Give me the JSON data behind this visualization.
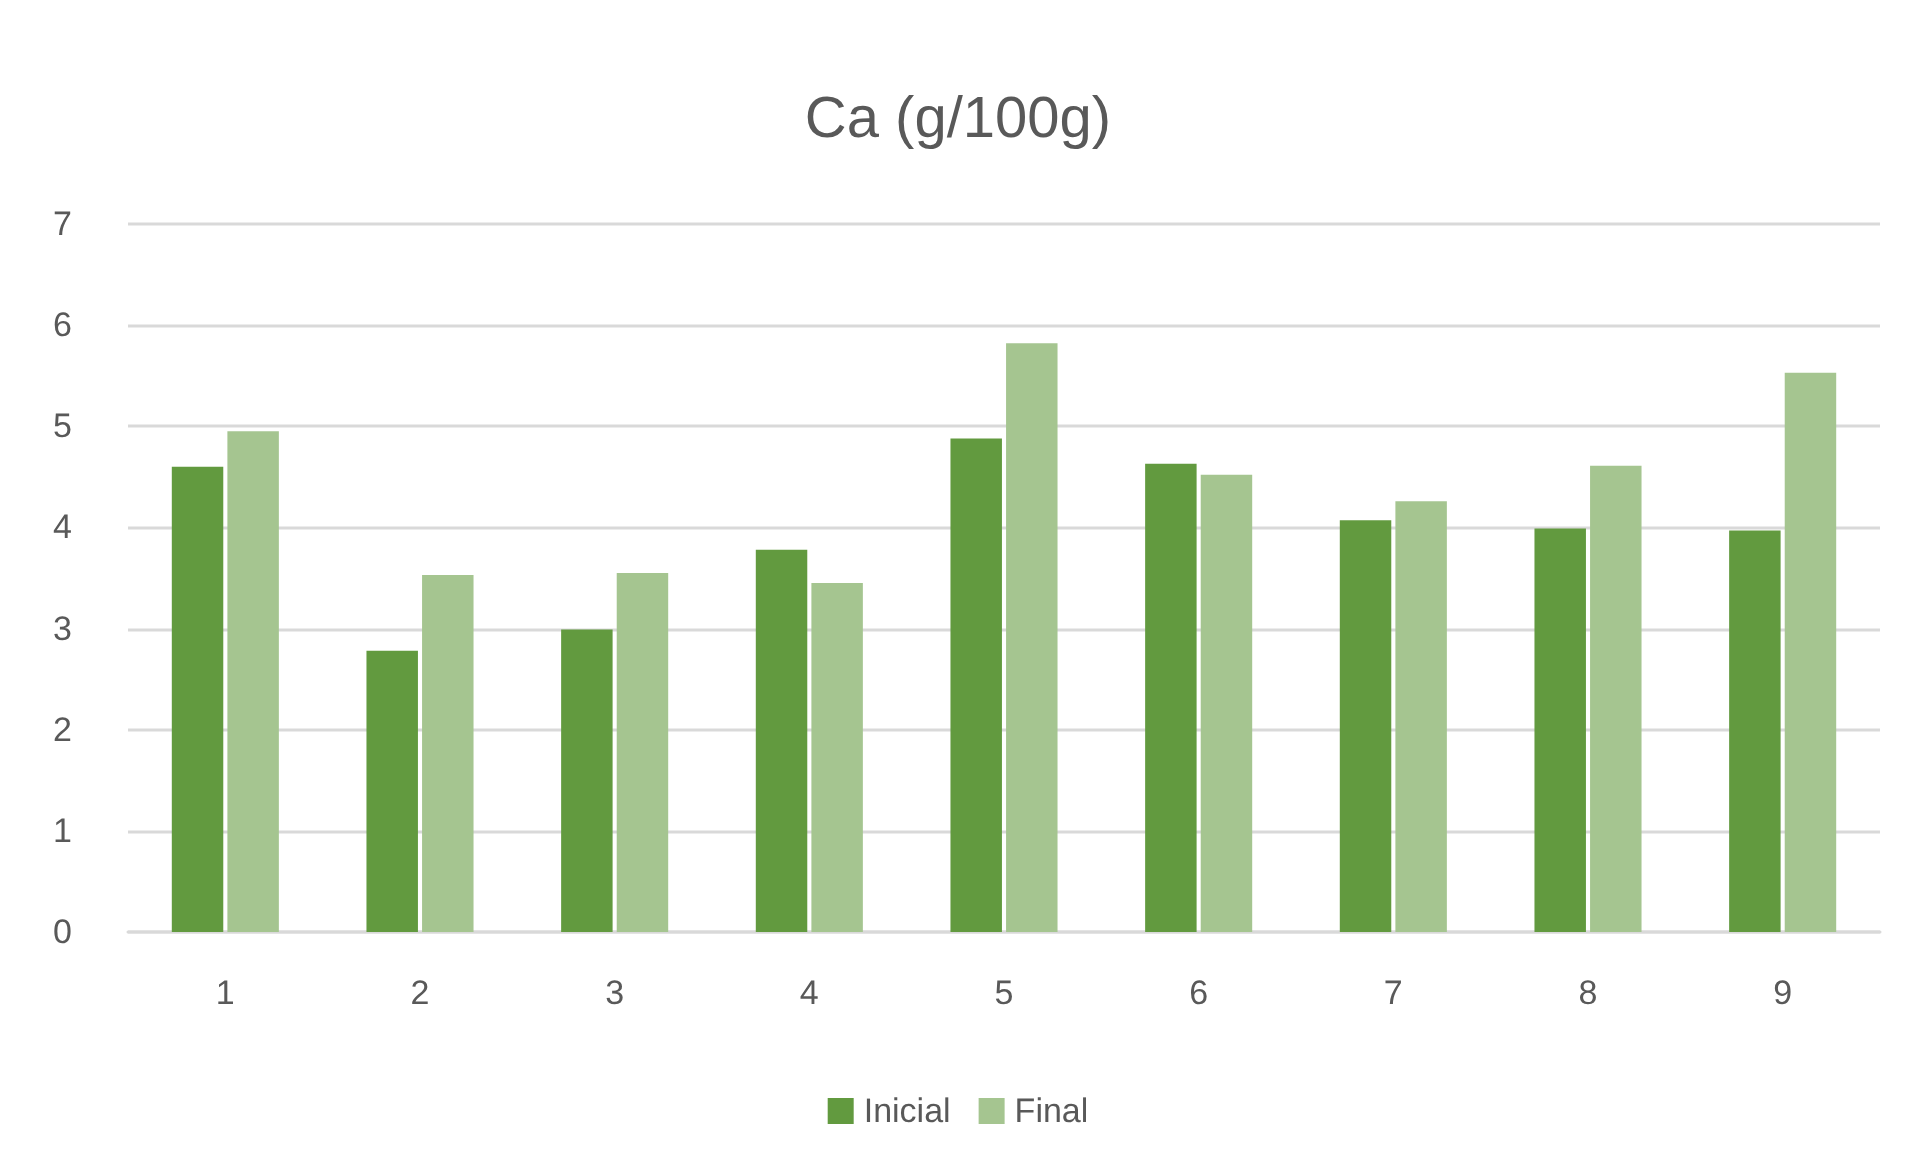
{
  "chart_data": {
    "type": "bar",
    "title": "Ca (g/100g)",
    "categories": [
      "1",
      "2",
      "3",
      "4",
      "5",
      "6",
      "7",
      "8",
      "9"
    ],
    "series": [
      {
        "name": "Inicial",
        "color": "#629a3f",
        "values": [
          4.6,
          2.78,
          2.99,
          3.78,
          4.88,
          4.63,
          4.07,
          3.99,
          3.97
        ]
      },
      {
        "name": "Final",
        "color": "#a5c590",
        "values": [
          4.95,
          3.53,
          3.55,
          3.45,
          5.82,
          4.52,
          4.26,
          4.61,
          5.53
        ]
      }
    ],
    "ylim": [
      0,
      7
    ],
    "yticks": [
      0,
      1,
      2,
      3,
      4,
      5,
      6,
      7
    ],
    "grid": "y",
    "legend": "bottom"
  }
}
